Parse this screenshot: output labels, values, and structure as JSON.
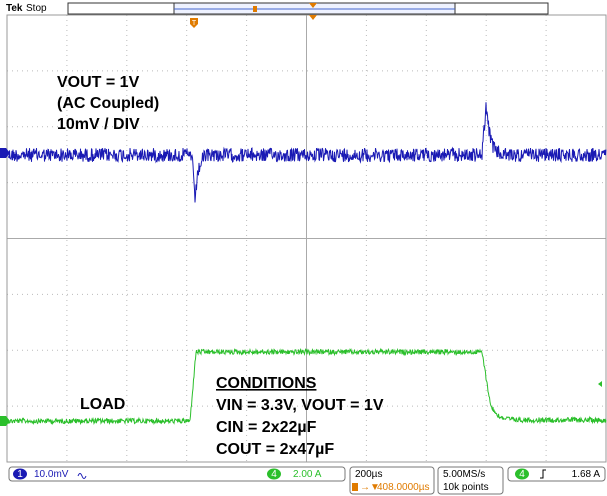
{
  "header": {
    "brand": "Tek",
    "state": "Stop"
  },
  "annotations": {
    "vout": "VOUT = 1V",
    "coupling": "(AC Coupled)",
    "scale": "10mV / DIV",
    "load": "LOAD",
    "conditions_title": "CONDITIONS",
    "conditions": [
      "VIN = 3.3V, VOUT = 1V",
      "CIN = 2x22µF",
      "COUT = 2x47µF"
    ]
  },
  "status_bar": {
    "ch1_number": "1",
    "ch1_scale": "10.0mV",
    "ch4_number": "4",
    "ch4_scale": "2.00 A",
    "timebase": "200µs",
    "trigger_position": "408.0000µs",
    "sample_rate": "5.00MS/s",
    "record_length": "10k points",
    "trigger_channel": "4",
    "trigger_level": "1.68 A"
  }
}
